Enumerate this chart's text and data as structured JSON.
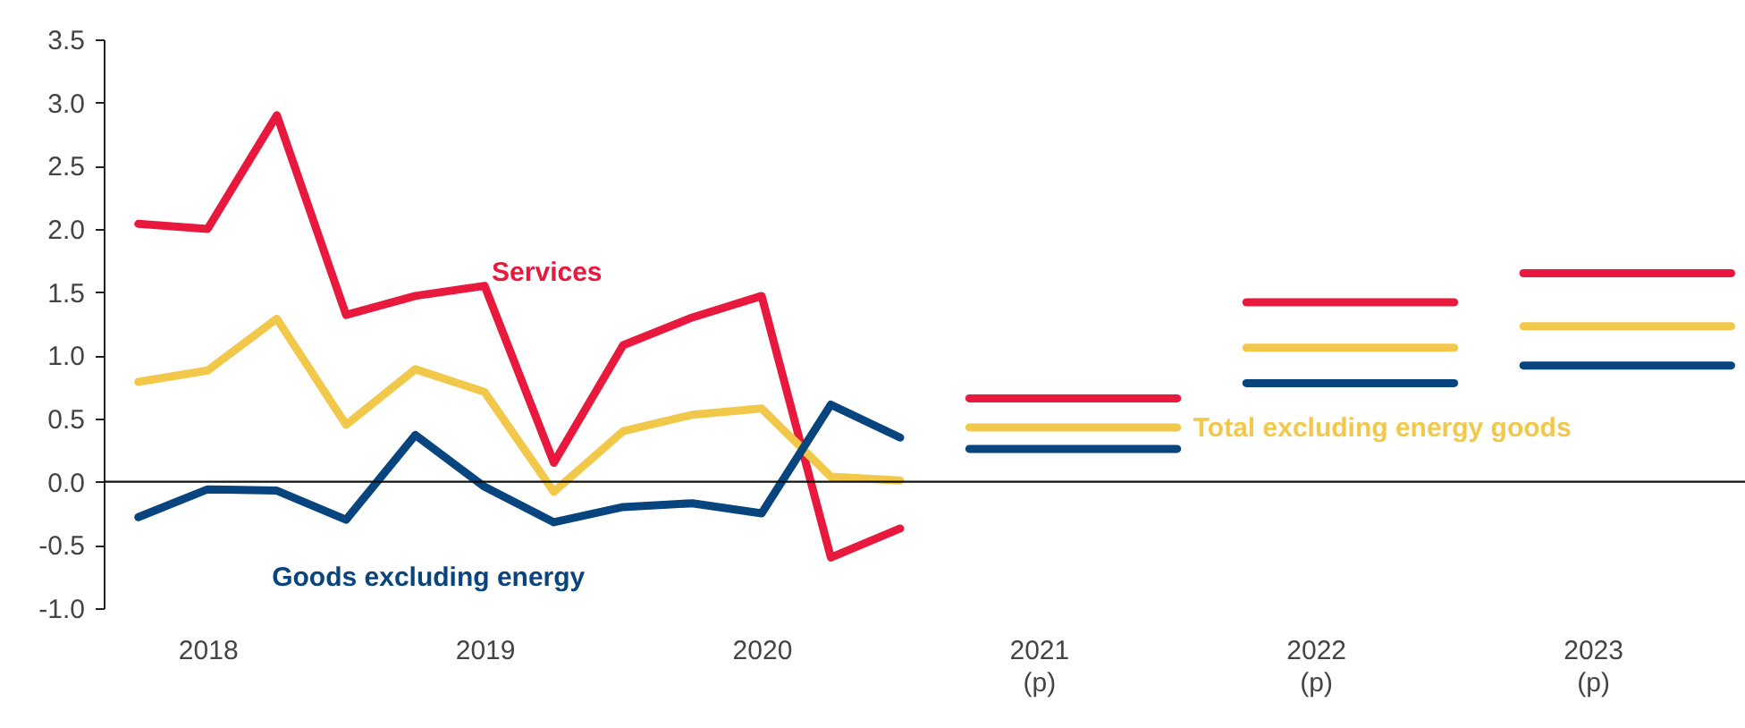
{
  "chart_data": {
    "type": "line",
    "categories": [
      null,
      "2018",
      null,
      null,
      null,
      "2019",
      null,
      null,
      null,
      "2020",
      null,
      null,
      null,
      "2021\n(p)",
      null,
      null,
      null,
      "2022\n(p)",
      null,
      null,
      null,
      "2023\n(p)",
      null,
      null
    ],
    "ylim": [
      -1,
      3.5
    ],
    "yticks": [
      {
        "value": -1,
        "label": "-1.0"
      },
      -0.5,
      {
        "value": 0,
        "label": "0.0"
      },
      0.5,
      {
        "value": 1,
        "label": "1.0"
      },
      1.5,
      {
        "value": 2,
        "label": "2.0"
      },
      2.5,
      {
        "value": 3,
        "label": "3.0"
      },
      3.5
    ],
    "series": [
      {
        "name": "Services",
        "color": "#e8193c",
        "values": [
          2.04,
          2.0,
          2.9,
          1.32,
          1.47,
          1.55,
          0.15,
          1.08,
          1.3,
          1.47,
          -0.6,
          -0.37,
          null,
          null,
          null,
          null,
          null,
          null,
          null,
          null,
          null,
          null,
          null,
          null
        ]
      },
      {
        "name": "Total excluding energy goods",
        "color": "#f2c84b",
        "values": [
          0.79,
          0.88,
          1.29,
          0.45,
          0.89,
          0.71,
          -0.08,
          0.4,
          0.53,
          0.58,
          0.04,
          0.01,
          null,
          null,
          null,
          null,
          null,
          null,
          null,
          null,
          null,
          null,
          null,
          null
        ]
      },
      {
        "name": "Goods excluding energy",
        "color": "#08457e",
        "values": [
          -0.28,
          -0.06,
          -0.07,
          -0.3,
          0.37,
          -0.04,
          -0.32,
          -0.2,
          -0.17,
          -0.25,
          0.61,
          0.35,
          null,
          null,
          null,
          null,
          null,
          null,
          null,
          null,
          null,
          null,
          null,
          null
        ]
      },
      {
        "color": "#e8193c",
        "values": [
          null,
          null,
          null,
          null,
          null,
          null,
          null,
          null,
          null,
          null,
          null,
          null,
          0.66,
          0.66,
          0.66,
          0.66,
          null,
          null,
          null,
          null,
          null,
          null,
          null,
          null
        ]
      },
      {
        "color": "#f2c84b",
        "values": [
          null,
          null,
          null,
          null,
          null,
          null,
          null,
          null,
          null,
          null,
          null,
          null,
          0.43,
          0.43,
          0.43,
          0.43,
          null,
          null,
          null,
          null,
          null,
          null,
          null,
          null
        ]
      },
      {
        "color": "#08457e",
        "values": [
          null,
          null,
          null,
          null,
          null,
          null,
          null,
          null,
          null,
          null,
          null,
          null,
          0.26,
          0.26,
          0.26,
          0.26,
          null,
          null,
          null,
          null,
          null,
          null,
          null,
          null
        ]
      },
      {
        "color": "#e8193c",
        "values": [
          null,
          null,
          null,
          null,
          null,
          null,
          null,
          null,
          null,
          null,
          null,
          null,
          null,
          null,
          null,
          null,
          1.42,
          1.42,
          1.42,
          1.42,
          null,
          null,
          null,
          null
        ]
      },
      {
        "color": "#f2c84b",
        "values": [
          null,
          null,
          null,
          null,
          null,
          null,
          null,
          null,
          null,
          null,
          null,
          null,
          null,
          null,
          null,
          null,
          1.06,
          1.06,
          1.06,
          1.06,
          null,
          null,
          null,
          null
        ]
      },
      {
        "color": "#08457e",
        "values": [
          null,
          null,
          null,
          null,
          null,
          null,
          null,
          null,
          null,
          null,
          null,
          null,
          null,
          null,
          null,
          null,
          0.78,
          0.78,
          0.78,
          0.78,
          null,
          null,
          null,
          null
        ]
      },
      {
        "color": "#e8193c",
        "values": [
          null,
          null,
          null,
          null,
          null,
          null,
          null,
          null,
          null,
          null,
          null,
          null,
          null,
          null,
          null,
          null,
          null,
          null,
          null,
          null,
          1.65,
          1.65,
          1.65,
          1.65
        ]
      },
      {
        "color": "#f2c84b",
        "values": [
          null,
          null,
          null,
          null,
          null,
          null,
          null,
          null,
          null,
          null,
          null,
          null,
          null,
          null,
          null,
          null,
          null,
          null,
          null,
          null,
          1.23,
          1.23,
          1.23,
          1.23
        ]
      },
      {
        "color": "#08457e",
        "values": [
          null,
          null,
          null,
          null,
          null,
          null,
          null,
          null,
          null,
          null,
          null,
          null,
          null,
          null,
          null,
          null,
          null,
          null,
          null,
          null,
          0.92,
          0.92,
          0.92,
          0.92
        ]
      }
    ]
  }
}
